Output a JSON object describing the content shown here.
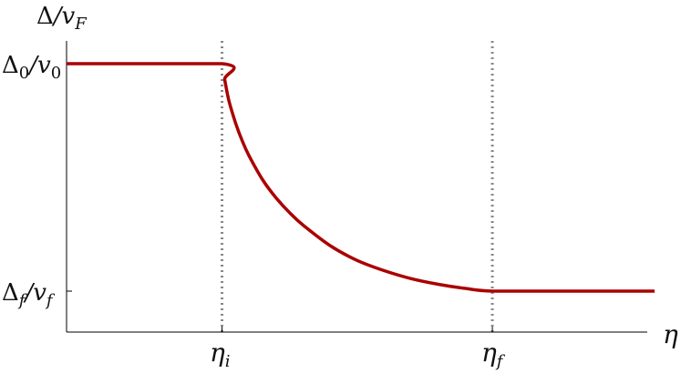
{
  "chart_data": {
    "type": "line",
    "title": "",
    "ylabel": "Δ/v_F",
    "xlabel": "η",
    "grid": false,
    "legend": "none",
    "y_ticks": [
      {
        "value": 1.0,
        "label": "Δ0/v0"
      },
      {
        "value": 0.0,
        "label": "Δf/vf"
      }
    ],
    "x_ticks": [
      {
        "value": 1.0,
        "label": "ηi"
      },
      {
        "value": 3.0,
        "label": "ηf"
      }
    ],
    "xlim": [
      -0.15,
      4.2
    ],
    "ylim": [
      -0.18,
      1.1
    ],
    "series": [
      {
        "name": "",
        "color": "#aa0000",
        "x": [
          -0.15,
          1.0,
          1.02,
          1.05,
          1.1,
          1.15,
          1.2,
          1.3,
          1.4,
          1.5,
          1.6,
          1.8,
          2.0,
          2.2,
          2.4,
          2.6,
          2.8,
          3.0,
          3.5,
          4.2
        ],
        "y": [
          1.0,
          1.0,
          0.93,
          0.84,
          0.74,
          0.66,
          0.595,
          0.49,
          0.41,
          0.345,
          0.29,
          0.2,
          0.135,
          0.09,
          0.055,
          0.03,
          0.012,
          0.0,
          0.0,
          0.0
        ]
      }
    ],
    "vlines": [
      {
        "x": 1.0,
        "color": "#888888",
        "style": "dotted"
      },
      {
        "x": 3.0,
        "color": "#888888",
        "style": "dotted"
      }
    ]
  }
}
